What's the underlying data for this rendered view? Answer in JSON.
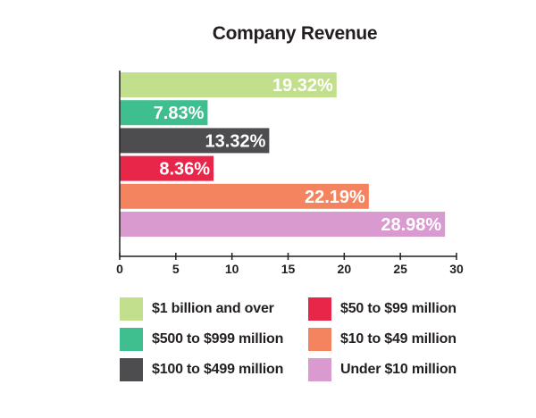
{
  "chart_data": {
    "type": "bar",
    "orientation": "horizontal",
    "title": "Company Revenue",
    "xlabel": "",
    "ylabel": "",
    "xlim": [
      0,
      30
    ],
    "xticks": [
      0,
      5,
      10,
      15,
      20,
      25,
      30
    ],
    "grid": false,
    "legend_position": "bottom",
    "categories": [
      "$1 billion and over",
      "$500 to $999 million",
      "$100 to $499 million",
      "$50 to $99 million",
      "$10 to $49 million",
      "Under $10 million"
    ],
    "values": [
      19.32,
      7.83,
      13.32,
      8.36,
      22.19,
      28.98
    ],
    "data_labels": [
      "19.32%",
      "7.83%",
      "13.32%",
      "8.36%",
      "22.19%",
      "28.98%"
    ],
    "colors": [
      "#c2df8e",
      "#3fbf8f",
      "#4d4d4f",
      "#e8264a",
      "#f4845f",
      "#d99ad0"
    ]
  },
  "legend": [
    {
      "label": "$1 billion and over",
      "color": "#c2df8e"
    },
    {
      "label": "$500 to $999 million",
      "color": "#3fbf8f"
    },
    {
      "label": "$100 to $499 million",
      "color": "#4d4d4f"
    },
    {
      "label": "$50 to $99 million",
      "color": "#e8264a"
    },
    {
      "label": "$10 to $49 million",
      "color": "#f4845f"
    },
    {
      "label": "Under $10 million",
      "color": "#d99ad0"
    }
  ]
}
